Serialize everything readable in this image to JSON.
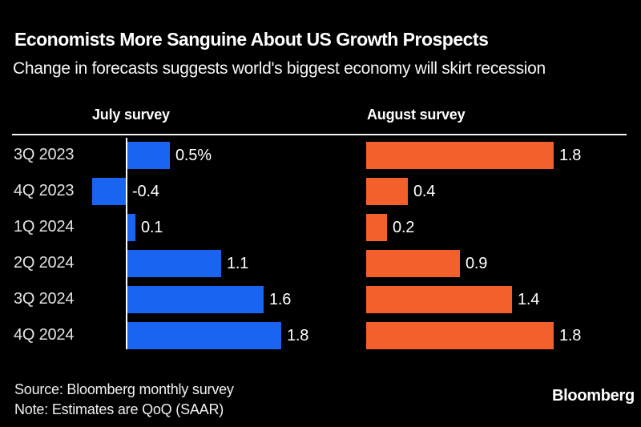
{
  "header": {
    "title": "Economists More Sanguine About US Growth Prospects",
    "subtitle": "Change in forecasts suggests world's biggest economy will skirt recession"
  },
  "chart_data": {
    "type": "bar",
    "orientation": "horizontal",
    "title": "Economists More Sanguine About US Growth Prospects",
    "subtitle": "Change in forecasts suggests world's biggest economy will skirt recession",
    "categories": [
      "3Q 2023",
      "4Q 2023",
      "1Q 2024",
      "2Q 2024",
      "3Q 2024",
      "4Q 2024"
    ],
    "series": [
      {
        "name": "July survey",
        "color": "#1964F0",
        "values": [
          0.5,
          -0.4,
          0.1,
          1.1,
          1.6,
          1.8
        ],
        "labels": [
          "0.5%",
          "-0.4",
          "0.1",
          "1.1",
          "1.6",
          "1.8"
        ]
      },
      {
        "name": "August survey",
        "color": "#F4602C",
        "values": [
          1.8,
          0.4,
          0.2,
          0.9,
          1.4,
          1.8
        ],
        "labels": [
          "1.8",
          "0.4",
          "0.2",
          "0.9",
          "1.4",
          "1.8"
        ]
      }
    ],
    "value_labels": true,
    "grid": false,
    "legend_position": "panel headers above plot",
    "xlim_july": [
      -0.4,
      1.8
    ],
    "xlim_august": [
      0,
      1.8
    ],
    "unit": "%"
  },
  "theme": {
    "background": "#000000",
    "text": "#FFFFFF",
    "rule": "#F2F2F2"
  },
  "footer": {
    "source": "Source: Bloomberg monthly survey",
    "note": "Note: Estimates are QoQ (SAAR)",
    "logo": "Bloomberg"
  }
}
